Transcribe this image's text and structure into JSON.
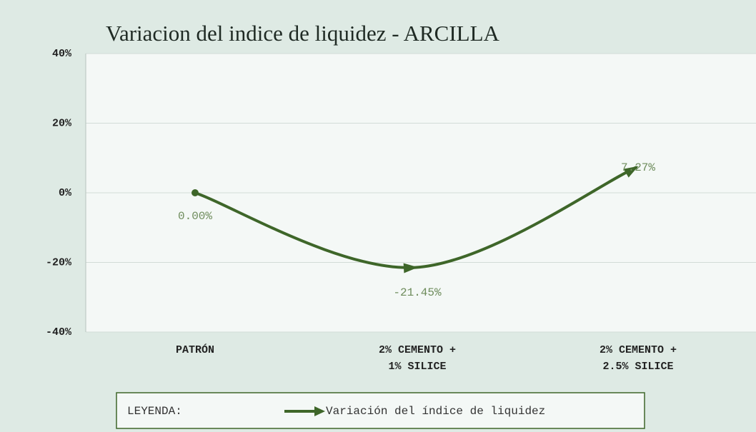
{
  "chart_data": {
    "type": "line",
    "title": "Variacion del indice de liquidez - ARCILLA",
    "categories": [
      [
        "PATRÓN"
      ],
      [
        "2% CEMENTO +",
        "1% SILICE"
      ],
      [
        "2% CEMENTO +",
        "2.5% SILICE"
      ]
    ],
    "series": [
      {
        "name": "Variación del índice de liquidez",
        "color": "#3e6629",
        "values": [
          0,
          -21.45,
          7.27
        ],
        "value_labels": [
          "0.00%",
          "-21.45%",
          "7.27%"
        ]
      }
    ],
    "ylim": [
      -40,
      40
    ],
    "yticks": [
      {
        "value": -40,
        "label": "-40%"
      },
      {
        "value": -20,
        "label": "-20%"
      },
      {
        "value": 0,
        "label": "0%"
      },
      {
        "value": 20,
        "label": "20%"
      },
      {
        "value": 40,
        "label": "40%"
      }
    ],
    "grid": true,
    "legend_title": "LEYENDA:",
    "legend": "bottom"
  }
}
